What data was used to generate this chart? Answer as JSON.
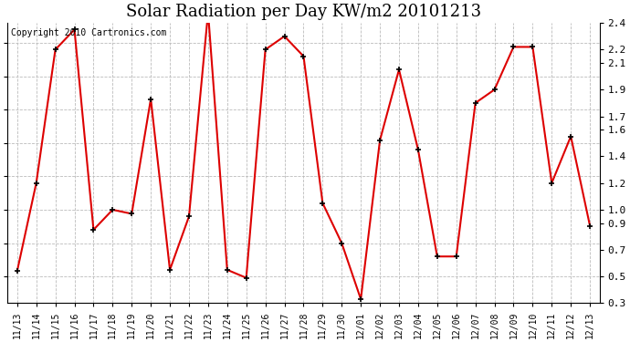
{
  "title": "Solar Radiation per Day KW/m2 20101213",
  "copyright_text": "Copyright 2010 Cartronics.com",
  "dates": [
    "11/13",
    "11/14",
    "11/15",
    "11/16",
    "11/17",
    "11/18",
    "11/19",
    "11/20",
    "11/21",
    "11/22",
    "11/23",
    "11/24",
    "11/25",
    "11/26",
    "11/27",
    "11/28",
    "11/29",
    "11/30",
    "12/01",
    "12/02",
    "12/03",
    "12/04",
    "12/05",
    "12/06",
    "12/07",
    "12/08",
    "12/09",
    "12/10",
    "12/11",
    "12/12",
    "12/13"
  ],
  "values": [
    0.54,
    1.2,
    2.2,
    2.35,
    0.85,
    1.0,
    0.97,
    1.83,
    0.55,
    0.95,
    2.48,
    0.55,
    0.49,
    2.2,
    2.3,
    2.15,
    1.05,
    0.75,
    0.33,
    1.52,
    2.05,
    1.45,
    0.65,
    0.65,
    1.8,
    1.9,
    2.22,
    2.22,
    1.2,
    1.55,
    0.88
  ],
  "line_color": "#dd0000",
  "marker_color": "#000000",
  "bg_color": "#ffffff",
  "grid_color": "#bbbbbb",
  "ylim": [
    0.3,
    2.4
  ],
  "ytick_vals": [
    0.3,
    0.5,
    0.7,
    0.9,
    1.0,
    1.2,
    1.4,
    1.6,
    1.7,
    1.9,
    2.1,
    2.2,
    2.4
  ],
  "ytick_labels": [
    "0.3",
    "0.5",
    "0.7",
    "0.9",
    "1.0",
    "1.2",
    "1.4",
    "1.6",
    "1.7",
    "1.9",
    "2.1",
    "2.2",
    "2.4"
  ],
  "title_fontsize": 13,
  "copyright_fontsize": 7,
  "tick_fontsize": 8,
  "xtick_fontsize": 7
}
